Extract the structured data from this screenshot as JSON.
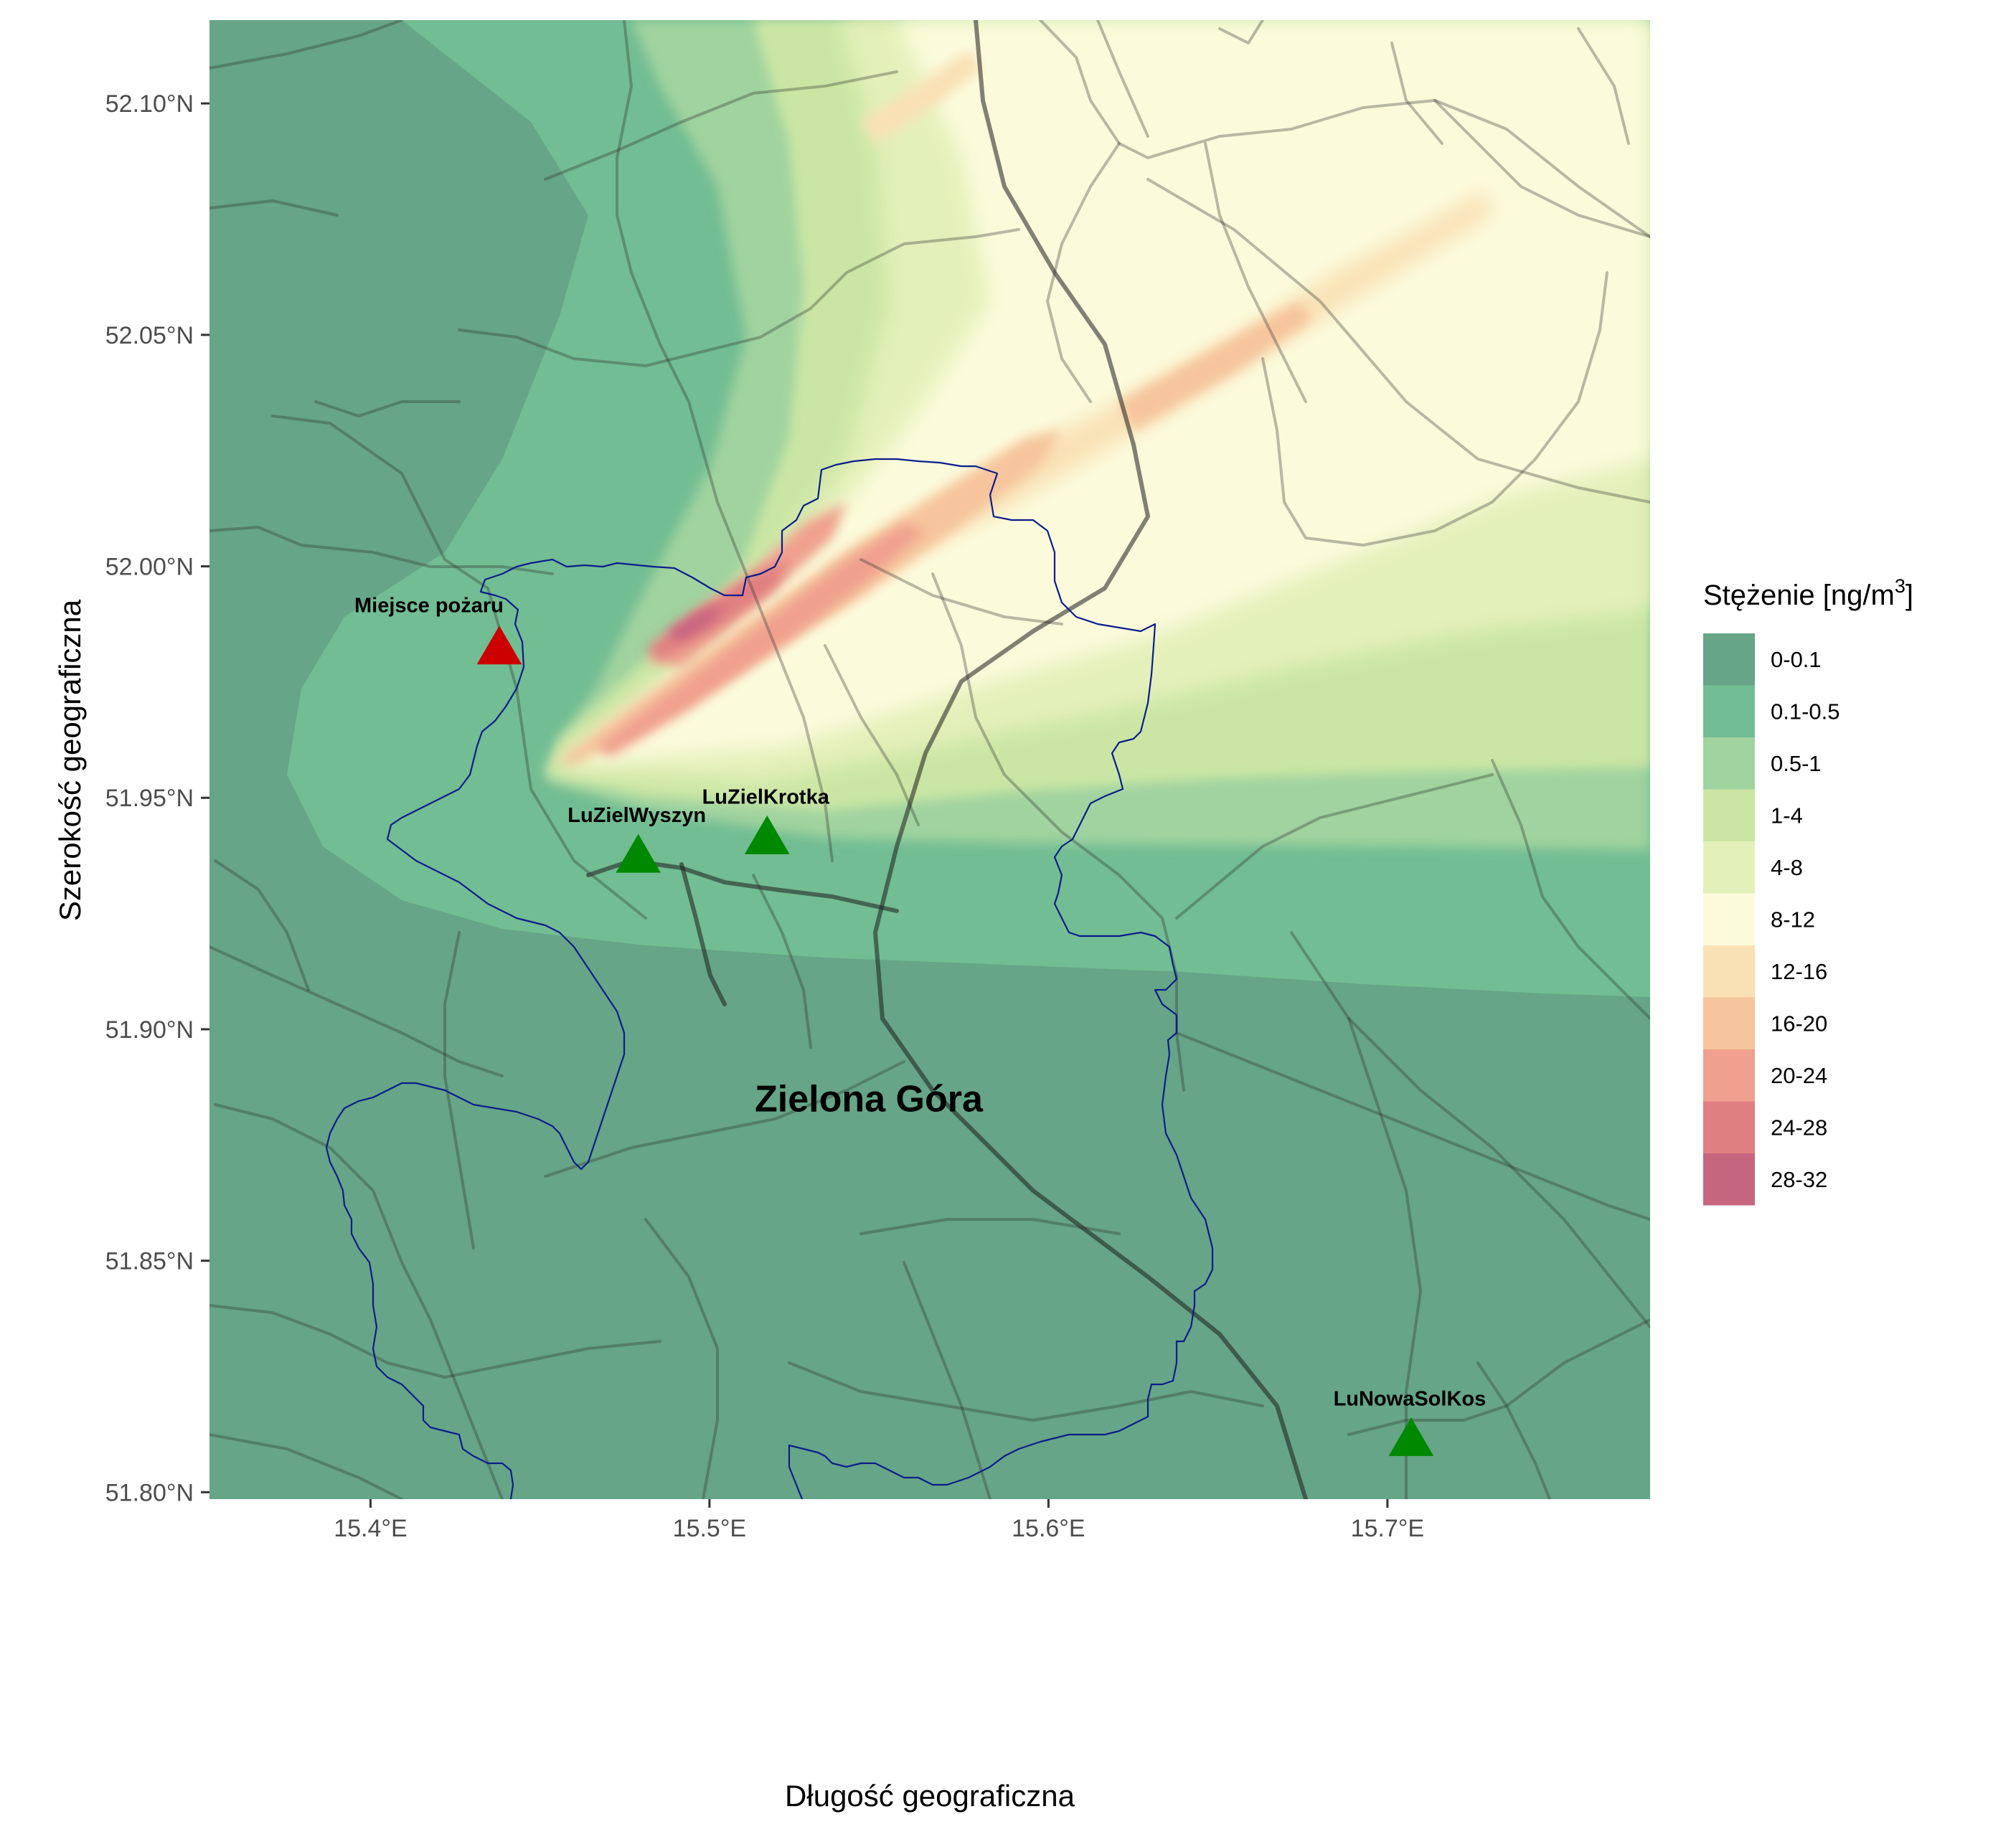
{
  "map": {
    "x_axis_title": "Długość geograficzna",
    "y_axis_title": "Szerokość geograficzna",
    "x_ticks": [
      {
        "lon": 15.4,
        "label": "15.4°E"
      },
      {
        "lon": 15.5,
        "label": "15.5°E"
      },
      {
        "lon": 15.6,
        "label": "15.6°E"
      },
      {
        "lon": 15.7,
        "label": "15.7°E"
      }
    ],
    "y_ticks": [
      {
        "lat": 51.8,
        "label": "51.80°N"
      },
      {
        "lat": 51.85,
        "label": "51.85°N"
      },
      {
        "lat": 51.9,
        "label": "51.90°N"
      },
      {
        "lat": 51.95,
        "label": "51.95°N"
      },
      {
        "lat": 52.0,
        "label": "52.00°N"
      },
      {
        "lat": 52.05,
        "label": "52.05°N"
      },
      {
        "lat": 52.1,
        "label": "52.10°N"
      }
    ],
    "lon_range": [
      15.3525,
      15.7775
    ],
    "lat_range": [
      51.7985,
      52.118
    ],
    "city_label": {
      "text": "Zielona Góra",
      "lon": 15.547,
      "lat": 51.885
    },
    "fire_site": {
      "name": "Miejsce pożaru",
      "lon": 15.438,
      "lat": 51.982,
      "color": "#cc0000"
    },
    "stations": [
      {
        "name": "LuZielWyszyn",
        "lon": 15.479,
        "lat": 51.937,
        "color": "#008800"
      },
      {
        "name": "LuZielKrotka",
        "lon": 15.517,
        "lat": 51.941,
        "color": "#008800"
      },
      {
        "name": "LuNowaSolKos",
        "lon": 15.707,
        "lat": 51.811,
        "color": "#008800"
      }
    ]
  },
  "legend": {
    "title_prefix": "Stężenie [ng/m",
    "title_sup": "3",
    "title_suffix": "]",
    "classes": [
      {
        "label": "0-0.1",
        "color": "#66a587"
      },
      {
        "label": "0.1-0.5",
        "color": "#72bd93"
      },
      {
        "label": "0.5-1",
        "color": "#a0d39f"
      },
      {
        "label": "1-4",
        "color": "#cbe6a4"
      },
      {
        "label": "4-8",
        "color": "#e4f0ba"
      },
      {
        "label": "8-12",
        "color": "#fbfbdc"
      },
      {
        "label": "12-16",
        "color": "#f9e1b5"
      },
      {
        "label": "16-20",
        "color": "#f6c59d"
      },
      {
        "label": "20-24",
        "color": "#f0a08e"
      },
      {
        "label": "24-28",
        "color": "#e07f81"
      },
      {
        "label": "28-32",
        "color": "#c66580"
      }
    ]
  }
}
